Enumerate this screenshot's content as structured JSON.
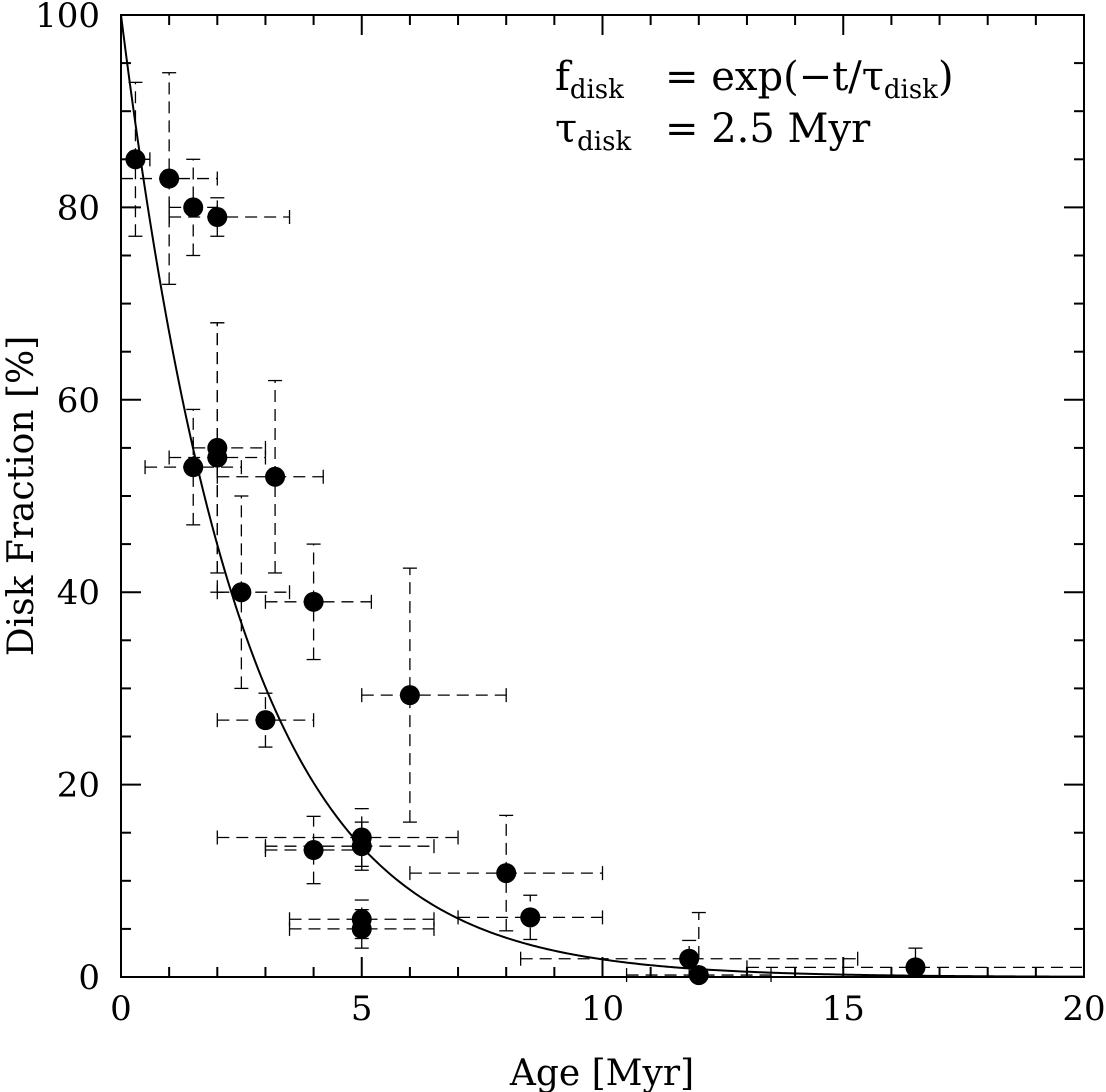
{
  "chart_data": {
    "type": "scatter",
    "title": "",
    "xlabel": "Age [Myr]",
    "ylabel": "Disk Fraction [%]",
    "xlim": [
      0,
      20
    ],
    "ylim": [
      0,
      100
    ],
    "xticks": [
      0,
      5,
      10,
      15,
      20
    ],
    "xtick_labels": [
      "0",
      "5",
      "10",
      "15",
      "20"
    ],
    "yticks": [
      0,
      20,
      40,
      60,
      80,
      100
    ],
    "ytick_labels": [
      "0",
      "20",
      "40",
      "60",
      "80",
      "100"
    ],
    "grid": false,
    "annotation": {
      "line1": {
        "lhs": "f",
        "lhs_sub": "disk",
        "rhs_pre": "=  exp(−t/τ",
        "rhs_sub": "disk",
        "rhs_post": ")"
      },
      "line2": {
        "lhs": "τ",
        "lhs_sub": "disk",
        "rhs": "=  2.5 Myr"
      }
    },
    "fit_curve": {
      "form": "exponential",
      "amplitude": 100,
      "tau_myr": 2.5
    },
    "points": [
      {
        "x": 0.3,
        "y": 85,
        "xerr": [
          0.3,
          0.3
        ],
        "yerr": [
          8,
          8
        ]
      },
      {
        "x": 1.0,
        "y": 83,
        "xerr": [
          1.0,
          1.0
        ],
        "yerr": [
          11,
          11
        ]
      },
      {
        "x": 1.5,
        "y": 80,
        "xerr": [
          0.5,
          0.5
        ],
        "yerr": [
          5,
          5
        ]
      },
      {
        "x": 2.0,
        "y": 79,
        "xerr": [
          1.0,
          1.5
        ],
        "yerr": [
          2,
          2
        ]
      },
      {
        "x": 1.5,
        "y": 53,
        "xerr": [
          1.0,
          1.0
        ],
        "yerr": [
          6,
          6
        ]
      },
      {
        "x": 2.0,
        "y": 55,
        "xerr": [
          0.5,
          1.0
        ],
        "yerr": [
          13,
          13
        ]
      },
      {
        "x": 2.0,
        "y": 54,
        "xerr": [
          1.0,
          1.0
        ],
        "yerr": [
          14,
          14
        ]
      },
      {
        "x": 3.2,
        "y": 52,
        "xerr": [
          1.2,
          1.0
        ],
        "yerr": [
          10,
          10
        ]
      },
      {
        "x": 2.5,
        "y": 40,
        "xerr": [
          0.5,
          1.0
        ],
        "yerr": [
          10,
          10
        ]
      },
      {
        "x": 4.0,
        "y": 39,
        "xerr": [
          1.0,
          1.2
        ],
        "yerr": [
          6,
          6
        ]
      },
      {
        "x": 6.0,
        "y": 29.3,
        "xerr": [
          1.0,
          2.0
        ],
        "yerr": [
          13.2,
          13.2
        ]
      },
      {
        "x": 3.0,
        "y": 26.7,
        "xerr": [
          1.0,
          1.0
        ],
        "yerr": [
          2.8,
          2.8
        ]
      },
      {
        "x": 5.0,
        "y": 14.5,
        "xerr": [
          3.0,
          2.0
        ],
        "yerr": [
          3,
          3
        ]
      },
      {
        "x": 5.0,
        "y": 13.6,
        "xerr": [
          2.0,
          1.5
        ],
        "yerr": [
          2.5,
          2.5
        ]
      },
      {
        "x": 4.0,
        "y": 13.2,
        "xerr": [
          1.0,
          1.0
        ],
        "yerr": [
          3.5,
          3.5
        ]
      },
      {
        "x": 8.0,
        "y": 10.8,
        "xerr": [
          2.0,
          2.0
        ],
        "yerr": [
          6,
          6
        ]
      },
      {
        "x": 8.5,
        "y": 6.2,
        "xerr": [
          1.5,
          1.5
        ],
        "yerr": [
          2.3,
          2.3
        ]
      },
      {
        "x": 5.0,
        "y": 6.0,
        "xerr": [
          1.5,
          1.5
        ],
        "yerr": [
          2,
          2
        ]
      },
      {
        "x": 5.0,
        "y": 5.0,
        "xerr": [
          1.5,
          1.5
        ],
        "yerr": [
          2,
          2
        ]
      },
      {
        "x": 11.8,
        "y": 1.9,
        "xerr": [
          3.5,
          3.5
        ],
        "yerr": [
          1.9,
          1.9
        ]
      },
      {
        "x": 12.0,
        "y": 0.2,
        "xerr": [
          1.5,
          1.5
        ],
        "yerr": [
          0.2,
          6.5
        ]
      },
      {
        "x": 16.5,
        "y": 1.0,
        "xerr": [
          3.5,
          3.5
        ],
        "yerr": [
          1.0,
          2.0
        ]
      }
    ]
  }
}
